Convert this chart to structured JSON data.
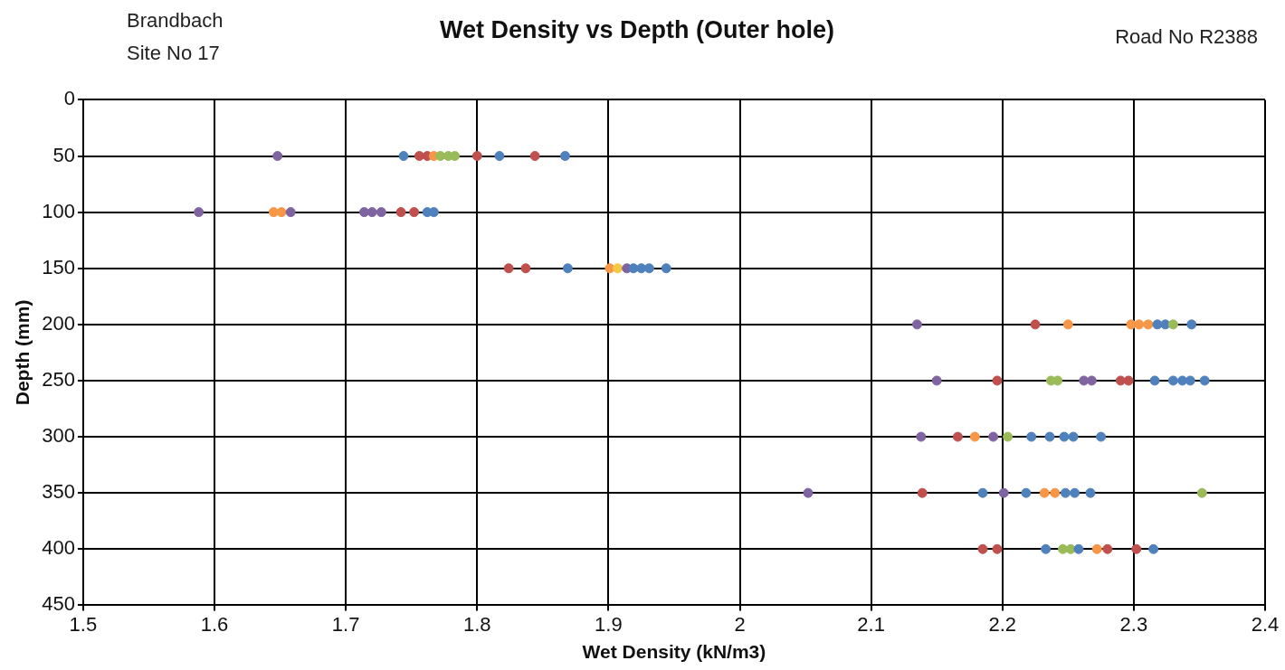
{
  "chart_data": {
    "type": "scatter",
    "title": "Wet Density vs Depth (Outer hole)",
    "xlabel": "Wet Density (kN/m3)",
    "ylabel": "Depth (mm)",
    "annotations": [
      "Brandbach",
      "Site No  17",
      "Road No  R2388"
    ],
    "x": [
      1.648,
      1.744,
      1.756,
      1.762,
      1.767,
      1.772,
      1.778,
      1.783,
      1.8,
      1.817,
      1.844,
      1.867,
      1.588,
      1.645,
      1.651,
      1.658,
      1.714,
      1.72,
      1.727,
      1.742,
      1.752,
      1.762,
      1.767,
      1.824,
      1.837,
      1.869,
      1.901,
      1.907,
      1.914,
      1.919,
      1.925,
      1.931,
      1.944,
      2.135,
      2.225,
      2.25,
      2.298,
      2.304,
      2.311,
      2.318,
      2.324,
      2.33,
      2.344,
      2.15,
      2.196,
      2.237,
      2.242,
      2.262,
      2.268,
      2.29,
      2.296,
      2.316,
      2.33,
      2.337,
      2.343,
      2.354,
      2.138,
      2.166,
      2.179,
      2.193,
      2.204,
      2.222,
      2.236,
      2.247,
      2.254,
      2.275,
      2.052,
      2.139,
      2.185,
      2.201,
      2.218,
      2.232,
      2.24,
      2.248,
      2.255,
      2.267,
      2.352,
      2.185,
      2.196,
      2.233,
      2.246,
      2.252,
      2.258,
      2.272,
      2.28,
      2.302,
      2.315
    ],
    "values": [
      50,
      50,
      50,
      50,
      50,
      50,
      50,
      50,
      50,
      50,
      50,
      50,
      100,
      100,
      100,
      100,
      100,
      100,
      100,
      100,
      100,
      100,
      100,
      150,
      150,
      150,
      150,
      150,
      150,
      150,
      150,
      150,
      150,
      200,
      200,
      200,
      200,
      200,
      200,
      200,
      200,
      200,
      200,
      250,
      250,
      250,
      250,
      250,
      250,
      250,
      250,
      250,
      250,
      250,
      250,
      250,
      300,
      300,
      300,
      300,
      300,
      300,
      300,
      300,
      300,
      300,
      350,
      350,
      350,
      350,
      350,
      350,
      350,
      350,
      350,
      350,
      350,
      400,
      400,
      400,
      400,
      400,
      400,
      400,
      400,
      400,
      400
    ],
    "colors": [
      "#8064a2",
      "#4f81bd",
      "#c0504d",
      "#c0504d",
      "#f79646",
      "#9bbb59",
      "#9bbb59",
      "#9bbb59",
      "#c0504d",
      "#4f81bd",
      "#c0504d",
      "#4f81bd",
      "#8064a2",
      "#f79646",
      "#f79646",
      "#8064a2",
      "#8064a2",
      "#8064a2",
      "#8064a2",
      "#c0504d",
      "#c0504d",
      "#4f81bd",
      "#4f81bd",
      "#c0504d",
      "#c0504d",
      "#4f81bd",
      "#f79646",
      "#f7c846",
      "#8064a2",
      "#4f81bd",
      "#4f81bd",
      "#4f81bd",
      "#4f81bd",
      "#8064a2",
      "#c0504d",
      "#f79646",
      "#f79646",
      "#f79646",
      "#f79646",
      "#4f81bd",
      "#4f81bd",
      "#9bbb59",
      "#4f81bd",
      "#8064a2",
      "#c0504d",
      "#9bbb59",
      "#9bbb59",
      "#8064a2",
      "#8064a2",
      "#c0504d",
      "#c0504d",
      "#4f81bd",
      "#4f81bd",
      "#4f81bd",
      "#4f81bd",
      "#4f81bd",
      "#8064a2",
      "#c0504d",
      "#f79646",
      "#8064a2",
      "#9bbb59",
      "#4f81bd",
      "#4f81bd",
      "#4f81bd",
      "#4f81bd",
      "#4f81bd",
      "#8064a2",
      "#c0504d",
      "#4f81bd",
      "#8064a2",
      "#4f81bd",
      "#f79646",
      "#f79646",
      "#4f81bd",
      "#4f81bd",
      "#4f81bd",
      "#9bbb59",
      "#c0504d",
      "#c0504d",
      "#4f81bd",
      "#9bbb59",
      "#9bbb59",
      "#4f81bd",
      "#f79646",
      "#c0504d",
      "#c0504d",
      "#4f81bd"
    ],
    "xlim": [
      1.5,
      2.4
    ],
    "xticks": [
      1.5,
      1.6,
      1.7,
      1.8,
      1.9,
      2,
      2.1,
      2.2,
      2.3,
      2.4
    ],
    "ylim": [
      450,
      0
    ],
    "yticks": [
      0,
      50,
      100,
      150,
      200,
      250,
      300,
      350,
      400,
      450
    ],
    "grid": true,
    "legend": false,
    "marker": "circle"
  }
}
